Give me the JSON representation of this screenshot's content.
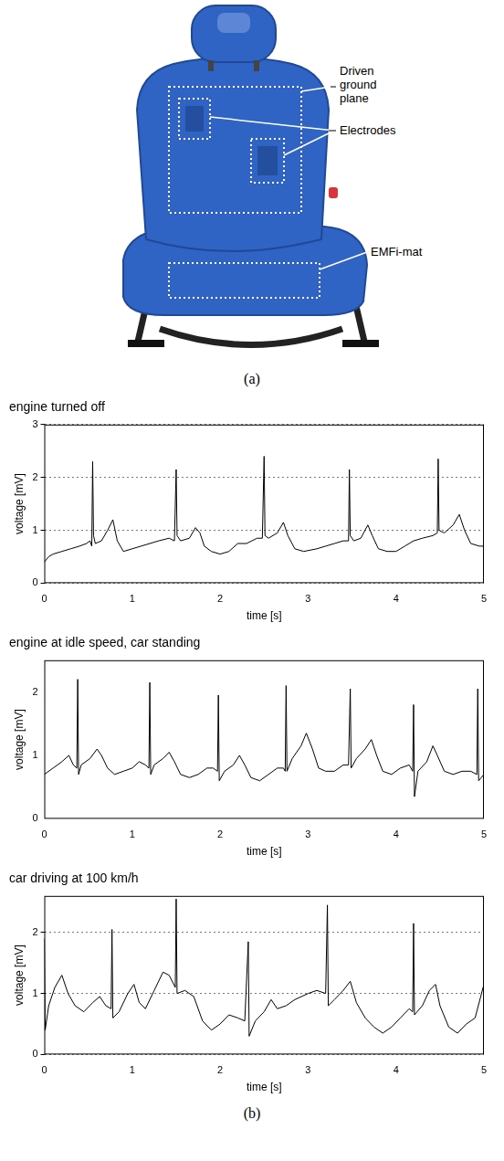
{
  "panel_a": {
    "driven_ground_plane": "Driven ground plane",
    "electrodes": "Electrodes",
    "emfi_mat": "EMFi-mat",
    "caption": "(a)"
  },
  "panel_b": {
    "caption": "(b)"
  },
  "chart_data": [
    {
      "type": "line",
      "title": "engine turned off",
      "x_label": "time [s]",
      "y_label": "voltage [mV]",
      "xlim": [
        0,
        5
      ],
      "xticks": [
        0,
        1,
        2,
        3,
        4,
        5
      ],
      "ylim": [
        0,
        3
      ],
      "yticks": [
        0,
        1,
        2,
        3
      ],
      "grid": true,
      "color": "#000000",
      "x": [
        0,
        0.05,
        0.1,
        0.2,
        0.3,
        0.4,
        0.48,
        0.52,
        0.54,
        0.55,
        0.56,
        0.58,
        0.65,
        0.72,
        0.78,
        0.83,
        0.9,
        1.0,
        1.1,
        1.2,
        1.3,
        1.42,
        1.48,
        1.5,
        1.51,
        1.55,
        1.65,
        1.72,
        1.77,
        1.82,
        1.9,
        2.0,
        2.1,
        2.2,
        2.3,
        2.42,
        2.48,
        2.5,
        2.51,
        2.55,
        2.65,
        2.72,
        2.77,
        2.85,
        2.95,
        3.1,
        3.2,
        3.3,
        3.4,
        3.46,
        3.47,
        3.48,
        3.52,
        3.6,
        3.68,
        3.73,
        3.8,
        3.9,
        4.0,
        4.1,
        4.2,
        4.3,
        4.42,
        4.47,
        4.48,
        4.49,
        4.55,
        4.65,
        4.72,
        4.78,
        4.85,
        4.95,
        5.0
      ],
      "values": [
        0.4,
        0.5,
        0.55,
        0.6,
        0.65,
        0.7,
        0.75,
        0.8,
        0.7,
        2.3,
        0.9,
        0.75,
        0.8,
        1.0,
        1.2,
        0.8,
        0.6,
        0.65,
        0.7,
        0.75,
        0.8,
        0.85,
        0.8,
        2.15,
        0.9,
        0.8,
        0.85,
        1.05,
        0.95,
        0.7,
        0.6,
        0.55,
        0.6,
        0.75,
        0.75,
        0.85,
        0.85,
        2.4,
        0.9,
        0.85,
        0.95,
        1.15,
        0.9,
        0.65,
        0.6,
        0.65,
        0.7,
        0.75,
        0.8,
        0.8,
        2.15,
        0.9,
        0.8,
        0.85,
        1.1,
        0.9,
        0.65,
        0.6,
        0.6,
        0.7,
        0.8,
        0.85,
        0.9,
        0.95,
        2.35,
        1.0,
        0.95,
        1.1,
        1.3,
        1.0,
        0.75,
        0.7,
        0.7
      ]
    },
    {
      "type": "line",
      "title": "engine at idle speed, car standing",
      "x_label": "time [s]",
      "y_label": "voltage [mV]",
      "xlim": [
        0,
        5
      ],
      "xticks": [
        0,
        1,
        2,
        3,
        4,
        5
      ],
      "ylim": [
        0,
        2.5
      ],
      "yticks": [
        0,
        1,
        2
      ],
      "grid": false,
      "color": "#000000",
      "x": [
        0,
        0.1,
        0.2,
        0.28,
        0.33,
        0.37,
        0.38,
        0.39,
        0.42,
        0.52,
        0.6,
        0.65,
        0.72,
        0.8,
        0.9,
        1.0,
        1.08,
        1.15,
        1.19,
        1.2,
        1.21,
        1.25,
        1.35,
        1.42,
        1.48,
        1.55,
        1.65,
        1.75,
        1.85,
        1.92,
        1.97,
        1.98,
        1.99,
        2.05,
        2.15,
        2.22,
        2.28,
        2.35,
        2.45,
        2.55,
        2.65,
        2.72,
        2.74,
        2.75,
        2.76,
        2.82,
        2.92,
        2.98,
        3.05,
        3.12,
        3.2,
        3.3,
        3.4,
        3.46,
        3.48,
        3.49,
        3.55,
        3.65,
        3.72,
        3.78,
        3.85,
        3.95,
        4.05,
        4.15,
        4.19,
        4.2,
        4.21,
        4.25,
        4.35,
        4.42,
        4.47,
        4.55,
        4.65,
        4.75,
        4.85,
        4.92,
        4.93,
        4.94,
        5.0
      ],
      "values": [
        0.7,
        0.8,
        0.9,
        1.0,
        0.85,
        0.8,
        2.2,
        0.7,
        0.85,
        0.95,
        1.1,
        1.0,
        0.8,
        0.7,
        0.75,
        0.8,
        0.9,
        0.85,
        0.8,
        2.15,
        0.7,
        0.85,
        0.95,
        1.05,
        0.9,
        0.7,
        0.65,
        0.7,
        0.8,
        0.8,
        0.75,
        1.95,
        0.6,
        0.75,
        0.85,
        1.0,
        0.85,
        0.65,
        0.6,
        0.7,
        0.8,
        0.8,
        0.75,
        2.1,
        0.75,
        0.95,
        1.15,
        1.35,
        1.1,
        0.8,
        0.75,
        0.75,
        0.85,
        0.85,
        2.05,
        0.8,
        0.95,
        1.1,
        1.25,
        1.0,
        0.75,
        0.7,
        0.8,
        0.85,
        0.75,
        1.8,
        0.35,
        0.75,
        0.9,
        1.15,
        1.0,
        0.75,
        0.7,
        0.75,
        0.75,
        0.7,
        2.05,
        0.6,
        0.7
      ]
    },
    {
      "type": "line",
      "title": "car driving at 100 km/h",
      "x_label": "time [s]",
      "y_label": "voltage [mV]",
      "xlim": [
        0,
        5
      ],
      "xticks": [
        0,
        1,
        2,
        3,
        4,
        5
      ],
      "ylim": [
        0,
        2.6
      ],
      "yticks": [
        0,
        1,
        2
      ],
      "grid": true,
      "color": "#000000",
      "x": [
        0,
        0.01,
        0.05,
        0.12,
        0.2,
        0.27,
        0.35,
        0.45,
        0.55,
        0.63,
        0.7,
        0.76,
        0.77,
        0.78,
        0.85,
        0.95,
        1.02,
        1.08,
        1.15,
        1.25,
        1.35,
        1.42,
        1.49,
        1.5,
        1.51,
        1.6,
        1.7,
        1.8,
        1.9,
        2.0,
        2.1,
        2.2,
        2.28,
        2.32,
        2.33,
        2.4,
        2.5,
        2.58,
        2.65,
        2.75,
        2.85,
        3.0,
        3.1,
        3.2,
        3.22,
        3.23,
        3.3,
        3.4,
        3.48,
        3.55,
        3.65,
        3.75,
        3.85,
        3.95,
        4.05,
        4.15,
        4.19,
        4.2,
        4.21,
        4.3,
        4.38,
        4.45,
        4.5,
        4.6,
        4.7,
        4.8,
        4.9,
        5.0
      ],
      "values": [
        1.9,
        0.4,
        0.8,
        1.1,
        1.3,
        1.0,
        0.8,
        0.7,
        0.85,
        0.95,
        0.8,
        0.75,
        2.05,
        0.6,
        0.7,
        1.0,
        1.15,
        0.85,
        0.75,
        1.05,
        1.35,
        1.3,
        1.1,
        2.55,
        1.0,
        1.05,
        0.95,
        0.55,
        0.4,
        0.5,
        0.65,
        0.6,
        0.55,
        1.85,
        0.3,
        0.55,
        0.7,
        0.9,
        0.75,
        0.8,
        0.9,
        1.0,
        1.05,
        1.0,
        2.45,
        0.8,
        0.9,
        1.05,
        1.2,
        0.85,
        0.6,
        0.45,
        0.35,
        0.45,
        0.6,
        0.75,
        0.7,
        2.15,
        0.65,
        0.8,
        1.05,
        1.15,
        0.8,
        0.45,
        0.35,
        0.5,
        0.6,
        1.15
      ]
    }
  ]
}
